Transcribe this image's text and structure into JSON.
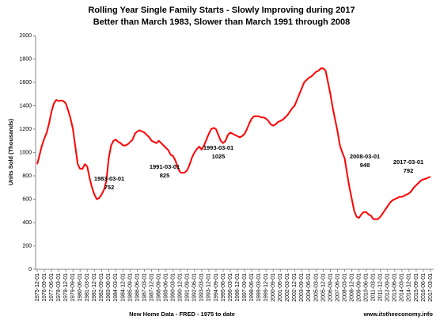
{
  "chart_data": {
    "type": "line",
    "title": "Rolling Year Single Family Starts - Slowly Improving during 2017",
    "subtitle": "Better than March 1983, Slower than March 1991 through 2008",
    "y_label": "Units Sold (Thousands)",
    "source": "New Home Data - FRED - 1975 to date",
    "credit": "www.itstheeconomy.info",
    "color": "#ff0000",
    "ylim": [
      0,
      2000
    ],
    "yticks": [
      0,
      200,
      400,
      600,
      800,
      1000,
      1200,
      1400,
      1600,
      1800,
      2000
    ],
    "categories": [
      "1975-12-01",
      null,
      null,
      "1976-09-01",
      null,
      null,
      "1977-06-01",
      null,
      null,
      "1978-03-01",
      null,
      null,
      "1978-12-01",
      null,
      null,
      "1979-09-01",
      null,
      null,
      "1980-06-01",
      null,
      null,
      "1981-03-01",
      null,
      null,
      "1981-12-01",
      null,
      null,
      "1982-09-01",
      null,
      null,
      "1983-06-01",
      null,
      null,
      "1984-03-01",
      null,
      null,
      "1984-12-01",
      null,
      null,
      "1985-09-01",
      null,
      null,
      "1986-06-01",
      null,
      null,
      "1987-03-01",
      null,
      null,
      "1987-12-01",
      null,
      null,
      "1988-09-01",
      null,
      null,
      "1989-06-01",
      null,
      null,
      "1990-03-01",
      null,
      null,
      "1990-12-01",
      null,
      null,
      "1991-09-01",
      null,
      null,
      "1992-06-01",
      null,
      null,
      "1993-03-01",
      null,
      null,
      "1993-12-01",
      null,
      null,
      "1994-09-01",
      null,
      null,
      "1995-06-01",
      null,
      null,
      "1996-03-01",
      null,
      null,
      "1996-12-01",
      null,
      null,
      "1997-09-01",
      null,
      null,
      "1998-06-01",
      null,
      null,
      "1999-03-01",
      null,
      null,
      "1999-12-01",
      null,
      null,
      "2000-09-01",
      null,
      null,
      "2001-06-01",
      null,
      null,
      "2002-03-01",
      null,
      null,
      "2002-12-01",
      null,
      null,
      "2003-09-01",
      null,
      null,
      "2004-06-01",
      null,
      null,
      "2005-03-01",
      null,
      null,
      "2005-12-01",
      null,
      null,
      "2006-09-01",
      null,
      null,
      "2007-06-01",
      null,
      null,
      "2008-03-01",
      null,
      null,
      "2008-12-01",
      null,
      null,
      "2009-09-01",
      null,
      null,
      "2010-06-01",
      null,
      null,
      "2011-03-01",
      null,
      null,
      "2011-12-01",
      null,
      null,
      "2012-09-01",
      null,
      null,
      "2013-06-01",
      null,
      null,
      "2014-03-01",
      null,
      null,
      "2014-12-01",
      null,
      null,
      "2015-09-01",
      null,
      null,
      "2016-06-01",
      null,
      null,
      "2017-03-01"
    ],
    "values": [
      900,
      980,
      1060,
      1120,
      1170,
      1250,
      1350,
      1420,
      1450,
      1440,
      1445,
      1440,
      1420,
      1360,
      1290,
      1200,
      1050,
      900,
      860,
      860,
      900,
      880,
      780,
      700,
      640,
      600,
      610,
      640,
      680,
      752,
      950,
      1060,
      1100,
      1110,
      1090,
      1080,
      1060,
      1060,
      1070,
      1090,
      1110,
      1160,
      1180,
      1190,
      1180,
      1170,
      1150,
      1130,
      1100,
      1090,
      1080,
      1100,
      1080,
      1060,
      1040,
      1020,
      980,
      970,
      930,
      870,
      830,
      825,
      830,
      850,
      900,
      960,
      1000,
      1030,
      1050,
      1025,
      1060,
      1110,
      1160,
      1200,
      1210,
      1200,
      1150,
      1100,
      1080,
      1100,
      1150,
      1170,
      1160,
      1150,
      1140,
      1130,
      1140,
      1160,
      1200,
      1250,
      1290,
      1310,
      1310,
      1310,
      1300,
      1300,
      1290,
      1270,
      1240,
      1230,
      1240,
      1260,
      1270,
      1280,
      1300,
      1320,
      1350,
      1380,
      1400,
      1450,
      1500,
      1550,
      1600,
      1620,
      1640,
      1650,
      1670,
      1690,
      1700,
      1720,
      1720,
      1700,
      1600,
      1500,
      1380,
      1280,
      1180,
      1060,
      1000,
      948,
      820,
      700,
      600,
      500,
      450,
      440,
      470,
      490,
      490,
      470,
      460,
      430,
      430,
      430,
      450,
      480,
      510,
      540,
      570,
      590,
      600,
      610,
      620,
      620,
      630,
      640,
      650,
      670,
      700,
      720,
      740,
      760,
      770,
      775,
      785,
      792
    ],
    "annotations": [
      {
        "label": "1983-03-01",
        "value": 752
      },
      {
        "label": "1991-03-01",
        "value": 825
      },
      {
        "label": "1993-03-01",
        "value": 1025
      },
      {
        "label": "2008-03-01",
        "value": 948
      },
      {
        "label": "2017-03-01",
        "value": 792
      }
    ]
  }
}
